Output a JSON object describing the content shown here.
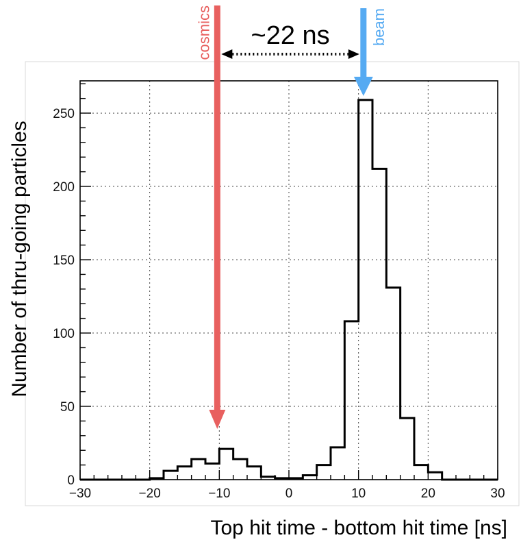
{
  "chart_data": {
    "type": "bar",
    "style": "step-histogram",
    "xlabel": "Top hit time - bottom hit time [ns]",
    "ylabel": "Number of thru-going particles",
    "xlim": [
      -30,
      30
    ],
    "ylim": [
      0,
      272
    ],
    "x_ticks": [
      -30,
      -20,
      -10,
      0,
      10,
      20,
      30
    ],
    "x_tick_labels": [
      "−30",
      "−20",
      "−10",
      "0",
      "10",
      "20",
      "30"
    ],
    "y_ticks": [
      0,
      50,
      100,
      150,
      200,
      250
    ],
    "y_tick_labels": [
      "0",
      "50",
      "100",
      "150",
      "200",
      "250"
    ],
    "grid": true,
    "bin_width": 2,
    "bin_edges": [
      -30,
      -28,
      -26,
      -24,
      -22,
      -20,
      -18,
      -16,
      -14,
      -12,
      -10,
      -8,
      -6,
      -4,
      -2,
      0,
      2,
      4,
      6,
      8,
      10,
      12,
      14,
      16,
      18,
      20,
      22,
      24,
      26,
      28,
      30
    ],
    "values": [
      0,
      0,
      0,
      0,
      0,
      1,
      6,
      9,
      14,
      11,
      21,
      14,
      9,
      2,
      1,
      1,
      3,
      10,
      22,
      108,
      259,
      212,
      131,
      42,
      10,
      5,
      0,
      0,
      0,
      0
    ],
    "annotations": {
      "cosmics": {
        "label": "cosmics",
        "x": -10,
        "color": "#e8605f"
      },
      "beam": {
        "label": "beam",
        "x": 11,
        "color": "#55aaf2"
      },
      "separation": {
        "label": "~22 ns",
        "from": -10,
        "to": 11
      }
    }
  }
}
